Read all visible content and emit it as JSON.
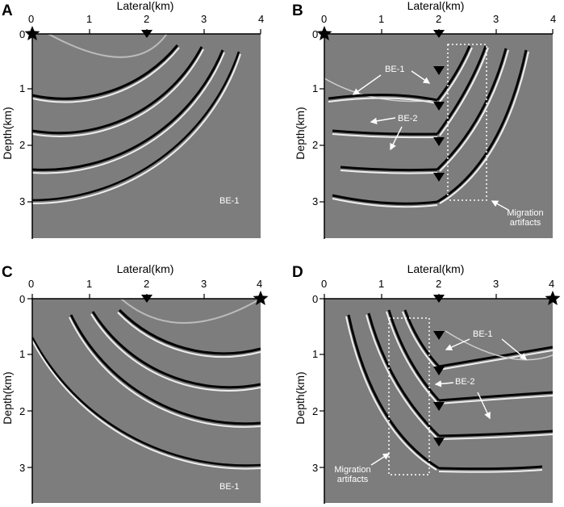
{
  "panels": [
    {
      "id": "A",
      "label": "A",
      "xtitle": "Lateral(km)",
      "ytitle": "Depth(km)",
      "xticks": [
        "0",
        "1",
        "2",
        "3",
        "4"
      ],
      "yticks": [
        "0",
        "1",
        "2",
        "3"
      ],
      "annotations": {
        "be1": "BE-1"
      }
    },
    {
      "id": "B",
      "label": "B",
      "xtitle": "Lateral(km)",
      "ytitle": "Depth(km)",
      "xticks": [
        "0",
        "1",
        "2",
        "3",
        "4"
      ],
      "yticks": [
        "0",
        "1",
        "2",
        "3"
      ],
      "annotations": {
        "be1": "BE-1",
        "be2": "BE-2",
        "artifacts": "Migration\nartifacts"
      }
    },
    {
      "id": "C",
      "label": "C",
      "xtitle": "Lateral(km)",
      "ytitle": "Depth(km)",
      "xticks": [
        "0",
        "1",
        "2",
        "3",
        "4"
      ],
      "yticks": [
        "0",
        "1",
        "2",
        "3"
      ],
      "annotations": {
        "be1": "BE-1"
      }
    },
    {
      "id": "D",
      "label": "D",
      "xtitle": "Lateral(km)",
      "ytitle": "Depth(km)",
      "xticks": [
        "0",
        "1",
        "2",
        "3",
        "4"
      ],
      "yticks": [
        "0",
        "1",
        "2",
        "3"
      ],
      "annotations": {
        "be1": "BE-1",
        "be2": "BE-2",
        "artifacts": "Migration\nartifacts"
      }
    }
  ],
  "colors": {
    "background": "#7d7d7d",
    "reflector_dark": "#050505",
    "reflector_light": "#f0f0f0"
  },
  "icons": {
    "source": "star-icon",
    "receiver": "triangle-down-icon"
  }
}
